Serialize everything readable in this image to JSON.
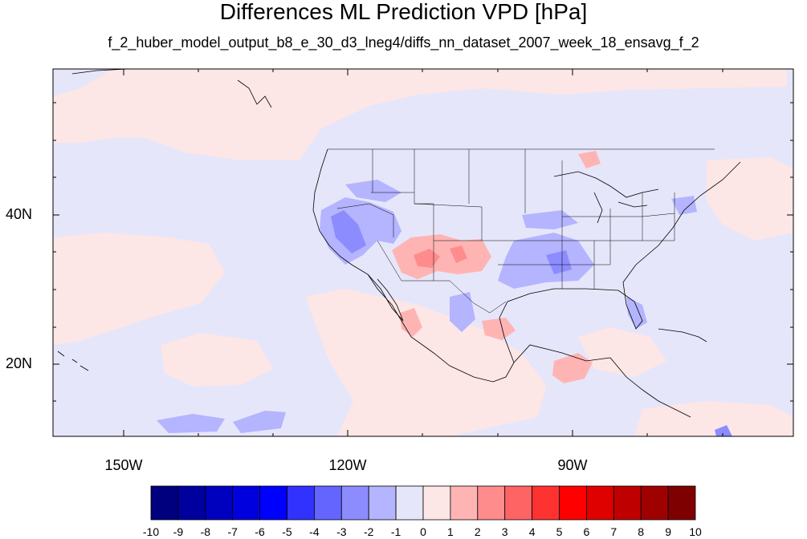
{
  "title": "Differences ML Prediction VPD [hPa]",
  "subtitle": "f_2_huber_model_output_b8_e_30_d3_lneg4/diffs_nn_dataset_2007_week_18_ensavg_f_2",
  "map": {
    "lon_labels": [
      "150W",
      "120W",
      "90W"
    ],
    "lat_labels": [
      "40N",
      "20N"
    ],
    "background_color": "#e6e6fa"
  },
  "colorbar": {
    "labels": [
      "-10",
      "-9",
      "-8",
      "-7",
      "-6",
      "-5",
      "-4",
      "-3",
      "-2",
      "-1",
      "0",
      "1",
      "2",
      "3",
      "4",
      "5",
      "6",
      "7",
      "8",
      "9",
      "10"
    ],
    "colors": [
      "#00007f",
      "#00009f",
      "#0000bf",
      "#0000df",
      "#0000ff",
      "#3232ff",
      "#6464ff",
      "#8c8cff",
      "#b4b4ff",
      "#e6e6fa",
      "#fde6e6",
      "#ffb4b4",
      "#ff8c8c",
      "#ff6464",
      "#ff3232",
      "#ff0000",
      "#df0000",
      "#bf0000",
      "#9f0000",
      "#7f0000"
    ]
  }
}
